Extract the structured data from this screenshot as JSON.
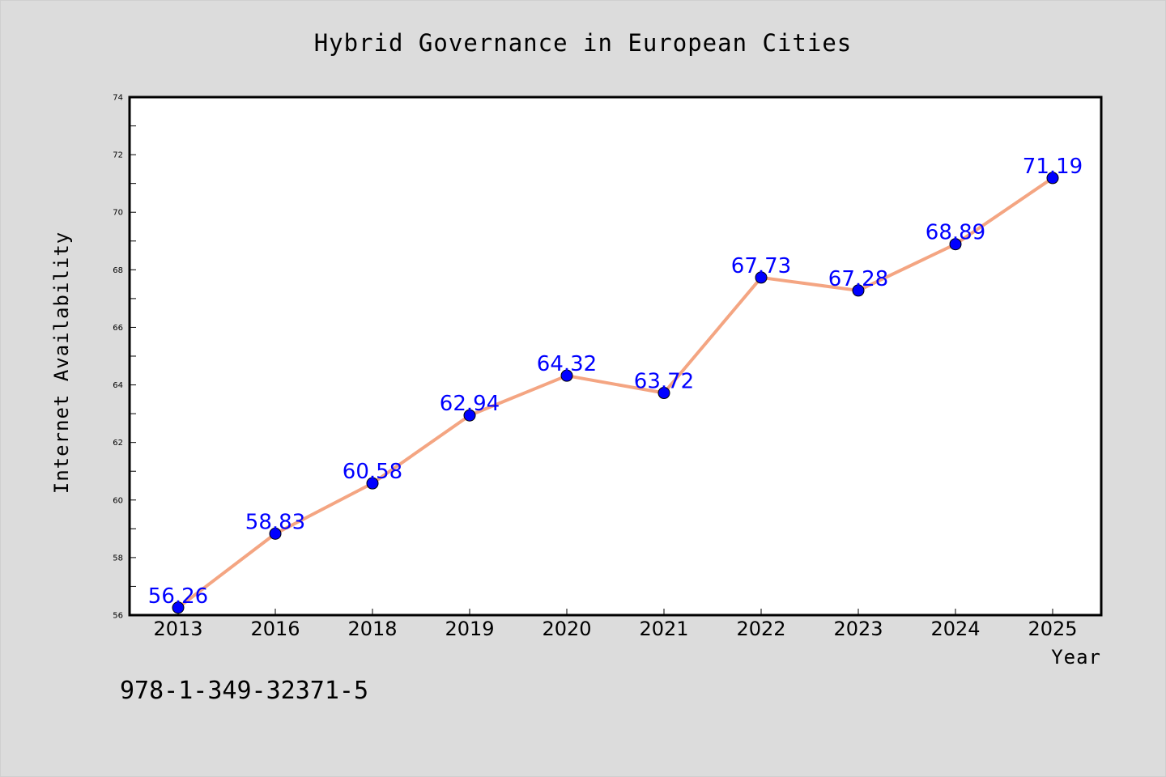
{
  "chart_data": {
    "type": "line",
    "title": "Hybrid Governance in European Cities",
    "xlabel": "Year",
    "ylabel": "Internet Availability",
    "categories": [
      "2013",
      "2016",
      "2018",
      "2019",
      "2020",
      "2021",
      "2022",
      "2023",
      "2024",
      "2025"
    ],
    "series": [
      {
        "values": [
          56.26,
          58.83,
          60.58,
          62.94,
          64.32,
          63.72,
          67.73,
          67.28,
          68.89,
          71.19
        ],
        "data_labels": [
          "56.26",
          "58.83",
          "60.58",
          "62.94",
          "64.32",
          "63.72",
          "67.73",
          "67.28",
          "68.89",
          "71.19"
        ]
      }
    ],
    "ylim": [
      56,
      74
    ],
    "yticks": [
      "56",
      "58",
      "60",
      "62",
      "64",
      "66",
      "68",
      "70",
      "72",
      "74"
    ],
    "grid": false,
    "legend": "none",
    "colors": {
      "line": "#f4a582",
      "marker": "#0000ff",
      "data_label": "#0000ff",
      "plot_background": "#ffffff",
      "figure_background": "#dcdcdc"
    }
  },
  "footer_text": "978-1-349-32371-5"
}
